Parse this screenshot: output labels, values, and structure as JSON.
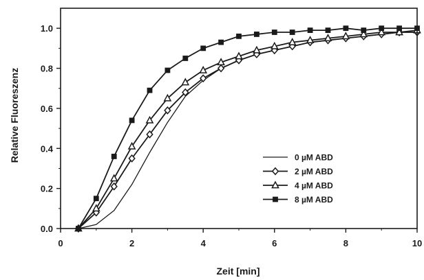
{
  "chart_data": {
    "type": "line",
    "xlabel": "Zeit [min]",
    "ylabel": "Relative Fluoreszenz",
    "xlim": [
      0,
      10
    ],
    "ylim": [
      0,
      1.1
    ],
    "xticks": [
      0,
      2,
      4,
      6,
      8,
      10
    ],
    "yticks": [
      0.0,
      0.2,
      0.4,
      0.6,
      0.8,
      1.0
    ],
    "xtick_labels": [
      "0",
      "2",
      "4",
      "6",
      "8",
      "10"
    ],
    "ytick_labels": [
      "0.0",
      "0.2",
      "0.4",
      "0.6",
      "0.8",
      "1.0"
    ],
    "grid": false,
    "legend_position": "bottom-right",
    "colors": {
      "line": "#1a1a1a",
      "marker_fill": "#ffffff"
    },
    "x": [
      0.5,
      1.0,
      1.5,
      2.0,
      2.5,
      3.0,
      3.5,
      4.0,
      4.5,
      5.0,
      5.5,
      6.0,
      6.5,
      7.0,
      7.5,
      8.0,
      8.5,
      9.0,
      9.5,
      10.0
    ],
    "series": [
      {
        "name": "0 µM ABD",
        "marker": "none",
        "values": [
          0.0,
          0.02,
          0.09,
          0.22,
          0.38,
          0.53,
          0.66,
          0.74,
          0.8,
          0.84,
          0.87,
          0.89,
          0.91,
          0.93,
          0.94,
          0.95,
          0.96,
          0.97,
          0.98,
          0.98
        ]
      },
      {
        "name": "2 µM ABD",
        "marker": "diamond",
        "values": [
          0.0,
          0.08,
          0.21,
          0.35,
          0.47,
          0.59,
          0.68,
          0.75,
          0.8,
          0.84,
          0.87,
          0.89,
          0.91,
          0.93,
          0.94,
          0.95,
          0.96,
          0.97,
          0.98,
          0.98
        ]
      },
      {
        "name": "4 µM ABD",
        "marker": "triangle",
        "values": [
          0.0,
          0.1,
          0.25,
          0.41,
          0.54,
          0.65,
          0.73,
          0.79,
          0.83,
          0.86,
          0.89,
          0.91,
          0.93,
          0.94,
          0.95,
          0.96,
          0.97,
          0.98,
          0.98,
          0.99
        ]
      },
      {
        "name": "8 µM ABD",
        "marker": "square",
        "values": [
          0.0,
          0.15,
          0.36,
          0.54,
          0.69,
          0.79,
          0.85,
          0.9,
          0.93,
          0.96,
          0.97,
          0.98,
          0.98,
          0.99,
          0.99,
          1.0,
          0.99,
          1.0,
          1.0,
          1.0
        ]
      }
    ]
  }
}
